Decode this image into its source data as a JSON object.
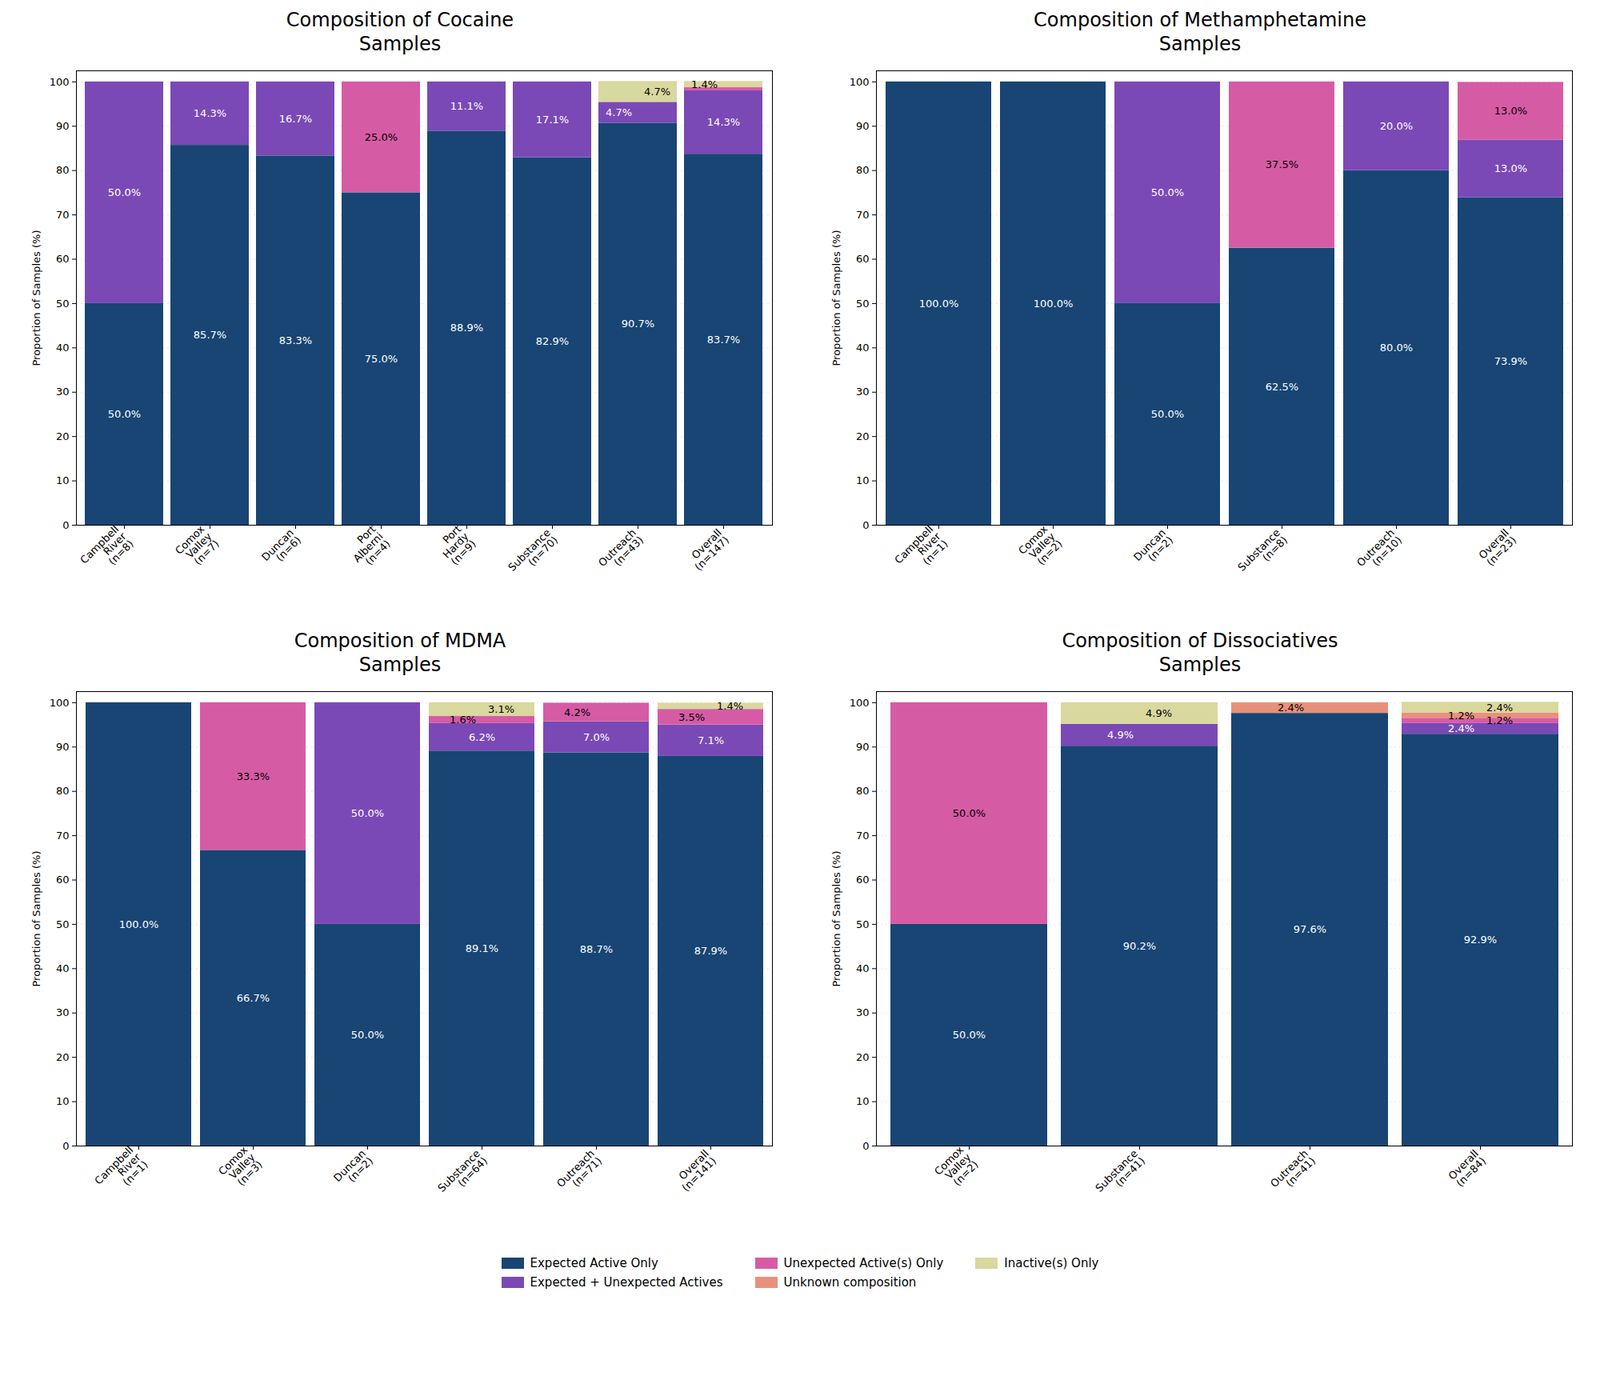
{
  "chart_data": [
    {
      "type": "bar",
      "title": "Composition of Cocaine\nSamples",
      "y_label": "Proportion of Samples (%)",
      "categories": [
        "Campbell\nRiver\n(n=8)",
        "Comox\nValley\n(n=7)",
        "Duncan\n(n=6)",
        "Port\nAlberni\n(n=4)",
        "Port\nHardy\n(n=9)",
        "Substance\n(n=70)",
        "Outreach\n(n=43)",
        "Overall\n(n=147)"
      ],
      "series": [
        {
          "name": "Expected Active Only",
          "color": "#184574",
          "values": [
            50.0,
            85.7,
            83.3,
            75.0,
            88.9,
            82.9,
            90.7,
            83.7
          ],
          "value_labels": [
            "50.0%",
            "85.7%",
            "83.3%",
            "75.0%",
            "88.9%",
            "82.9%",
            "90.7%",
            "83.7%"
          ]
        },
        {
          "name": "Expected + Unexpected Actives",
          "color": "#7a49b6",
          "values": [
            50.0,
            14.3,
            16.7,
            0,
            11.1,
            17.1,
            4.7,
            14.3
          ],
          "value_labels": [
            "50.0%",
            "14.3%",
            "16.7%",
            null,
            "11.1%",
            "17.1%",
            "4.7%",
            "14.3%"
          ]
        },
        {
          "name": "Unexpected Active(s) Only",
          "color": "#d65ba5",
          "values": [
            0,
            0,
            0,
            25.0,
            0,
            0,
            0,
            0.7
          ],
          "value_labels": [
            null,
            null,
            null,
            "25.0%",
            null,
            null,
            null,
            null
          ]
        },
        {
          "name": "Unknown composition",
          "color": "#e8917a",
          "values": [
            0,
            0,
            0,
            0,
            0,
            0,
            0,
            0
          ],
          "value_labels": [
            null,
            null,
            null,
            null,
            null,
            null,
            null,
            null
          ]
        },
        {
          "name": "Inactive(s) Only",
          "color": "#d9d89e",
          "values": [
            0,
            0,
            0,
            0,
            0,
            0,
            4.7,
            1.4
          ],
          "value_labels": [
            null,
            null,
            null,
            null,
            null,
            null,
            "4.7%",
            "1.4%"
          ]
        }
      ],
      "ylim": [
        0,
        102.5
      ],
      "yticks": [
        0,
        10,
        20,
        30,
        40,
        50,
        60,
        70,
        80,
        90,
        100
      ],
      "grid": true,
      "stacked": true,
      "data_labels": true,
      "legend": "bottom"
    },
    {
      "type": "bar",
      "title": "Composition of Methamphetamine\nSamples",
      "y_label": "Proportion of Samples (%)",
      "categories": [
        "Campbell\nRiver\n(n=1)",
        "Comox\nValley\n(n=2)",
        "Duncan\n(n=2)",
        "Substance\n(n=8)",
        "Outreach\n(n=10)",
        "Overall\n(n=23)"
      ],
      "series": [
        {
          "name": "Expected Active Only",
          "color": "#184574",
          "values": [
            100.0,
            100.0,
            50.0,
            62.5,
            80.0,
            73.9
          ],
          "value_labels": [
            "100.0%",
            "100.0%",
            "50.0%",
            "62.5%",
            "80.0%",
            "73.9%"
          ]
        },
        {
          "name": "Expected + Unexpected Actives",
          "color": "#7a49b6",
          "values": [
            0,
            0,
            50.0,
            0,
            20.0,
            13.0
          ],
          "value_labels": [
            null,
            null,
            "50.0%",
            null,
            "20.0%",
            "13.0%"
          ]
        },
        {
          "name": "Unexpected Active(s) Only",
          "color": "#d65ba5",
          "values": [
            0,
            0,
            0,
            37.5,
            0,
            13.0
          ],
          "value_labels": [
            null,
            null,
            null,
            "37.5%",
            null,
            "13.0%"
          ]
        },
        {
          "name": "Unknown composition",
          "color": "#e8917a",
          "values": [
            0,
            0,
            0,
            0,
            0,
            0
          ],
          "value_labels": [
            null,
            null,
            null,
            null,
            null,
            null
          ]
        },
        {
          "name": "Inactive(s) Only",
          "color": "#d9d89e",
          "values": [
            0,
            0,
            0,
            0,
            0,
            0
          ],
          "value_labels": [
            null,
            null,
            null,
            null,
            null,
            null
          ]
        }
      ],
      "ylim": [
        0,
        102.5
      ],
      "yticks": [
        0,
        10,
        20,
        30,
        40,
        50,
        60,
        70,
        80,
        90,
        100
      ],
      "grid": true,
      "stacked": true,
      "data_labels": true,
      "legend": "bottom"
    },
    {
      "type": "bar",
      "title": "Composition of MDMA\nSamples",
      "y_label": "Proportion of Samples (%)",
      "categories": [
        "Campbell\nRiver\n(n=1)",
        "Comox\nValley\n(n=3)",
        "Duncan\n(n=2)",
        "Substance\n(n=64)",
        "Outreach\n(n=71)",
        "Overall\n(n=141)"
      ],
      "series": [
        {
          "name": "Expected Active Only",
          "color": "#184574",
          "values": [
            100.0,
            66.7,
            50.0,
            89.1,
            88.7,
            87.9
          ],
          "value_labels": [
            "100.0%",
            "66.7%",
            "50.0%",
            "89.1%",
            "88.7%",
            "87.9%"
          ]
        },
        {
          "name": "Expected + Unexpected Actives",
          "color": "#7a49b6",
          "values": [
            0,
            0,
            50.0,
            6.2,
            7.0,
            7.1
          ],
          "value_labels": [
            null,
            null,
            "50.0%",
            "6.2%",
            "7.0%",
            "7.1%"
          ]
        },
        {
          "name": "Unexpected Active(s) Only",
          "color": "#d65ba5",
          "values": [
            0,
            33.3,
            0,
            1.6,
            4.2,
            3.5
          ],
          "value_labels": [
            null,
            "33.3%",
            null,
            "1.6%",
            "4.2%",
            "3.5%"
          ]
        },
        {
          "name": "Unknown composition",
          "color": "#e8917a",
          "values": [
            0,
            0,
            0,
            0,
            0,
            0
          ],
          "value_labels": [
            null,
            null,
            null,
            null,
            null,
            null
          ]
        },
        {
          "name": "Inactive(s) Only",
          "color": "#d9d89e",
          "values": [
            0,
            0,
            0,
            3.1,
            0,
            1.4
          ],
          "value_labels": [
            null,
            null,
            null,
            "3.1%",
            null,
            "1.4%"
          ]
        }
      ],
      "ylim": [
        0,
        102.5
      ],
      "yticks": [
        0,
        10,
        20,
        30,
        40,
        50,
        60,
        70,
        80,
        90,
        100
      ],
      "grid": true,
      "stacked": true,
      "data_labels": true,
      "legend": "bottom"
    },
    {
      "type": "bar",
      "title": "Composition of Dissociatives\nSamples",
      "y_label": "Proportion of Samples (%)",
      "categories": [
        "Comox\nValley\n(n=2)",
        "Substance\n(n=41)",
        "Outreach\n(n=41)",
        "Overall\n(n=84)"
      ],
      "series": [
        {
          "name": "Expected Active Only",
          "color": "#184574",
          "values": [
            50.0,
            90.2,
            97.6,
            92.9
          ],
          "value_labels": [
            "50.0%",
            "90.2%",
            "97.6%",
            "92.9%"
          ]
        },
        {
          "name": "Expected + Unexpected Actives",
          "color": "#7a49b6",
          "values": [
            0,
            4.9,
            0,
            2.4
          ],
          "value_labels": [
            null,
            "4.9%",
            null,
            "2.4%"
          ]
        },
        {
          "name": "Unexpected Active(s) Only",
          "color": "#d65ba5",
          "values": [
            50.0,
            0,
            0,
            1.2
          ],
          "value_labels": [
            "50.0%",
            null,
            null,
            "1.2%"
          ]
        },
        {
          "name": "Unknown composition",
          "color": "#e8917a",
          "values": [
            0,
            0,
            2.4,
            1.2
          ],
          "value_labels": [
            null,
            null,
            "2.4%",
            "1.2%"
          ]
        },
        {
          "name": "Inactive(s) Only",
          "color": "#d9d89e",
          "values": [
            0,
            4.9,
            0,
            2.4
          ],
          "value_labels": [
            null,
            "4.9%",
            null,
            "2.4%"
          ]
        }
      ],
      "ylim": [
        0,
        102.5
      ],
      "yticks": [
        0,
        10,
        20,
        30,
        40,
        50,
        60,
        70,
        80,
        90,
        100
      ],
      "grid": true,
      "stacked": true,
      "data_labels": true,
      "legend": "bottom"
    }
  ]
}
